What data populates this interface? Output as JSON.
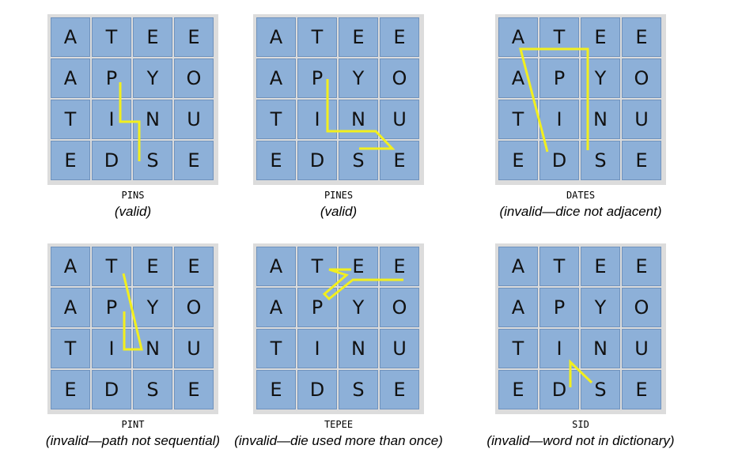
{
  "grid": [
    [
      "A",
      "T",
      "E",
      "E"
    ],
    [
      "A",
      "P",
      "Y",
      "O"
    ],
    [
      "T",
      "I",
      "N",
      "U"
    ],
    [
      "E",
      "D",
      "S",
      "E"
    ]
  ],
  "examples": [
    {
      "word": "PINS",
      "status": "(valid)"
    },
    {
      "word": "PINES",
      "status": "(valid)"
    },
    {
      "word": "DATES",
      "status": "(invalid—dice not adjacent)"
    },
    {
      "word": "PINT",
      "status": "(invalid—path not sequential)"
    },
    {
      "word": "TEPEE",
      "status": "(invalid—die used more than once)"
    },
    {
      "word": "SID",
      "status": "(invalid—word not in dictionary)"
    }
  ],
  "colors": {
    "die_face": "#8db0d8",
    "board": "#dcdcdc",
    "path": "#f2ef1e"
  }
}
